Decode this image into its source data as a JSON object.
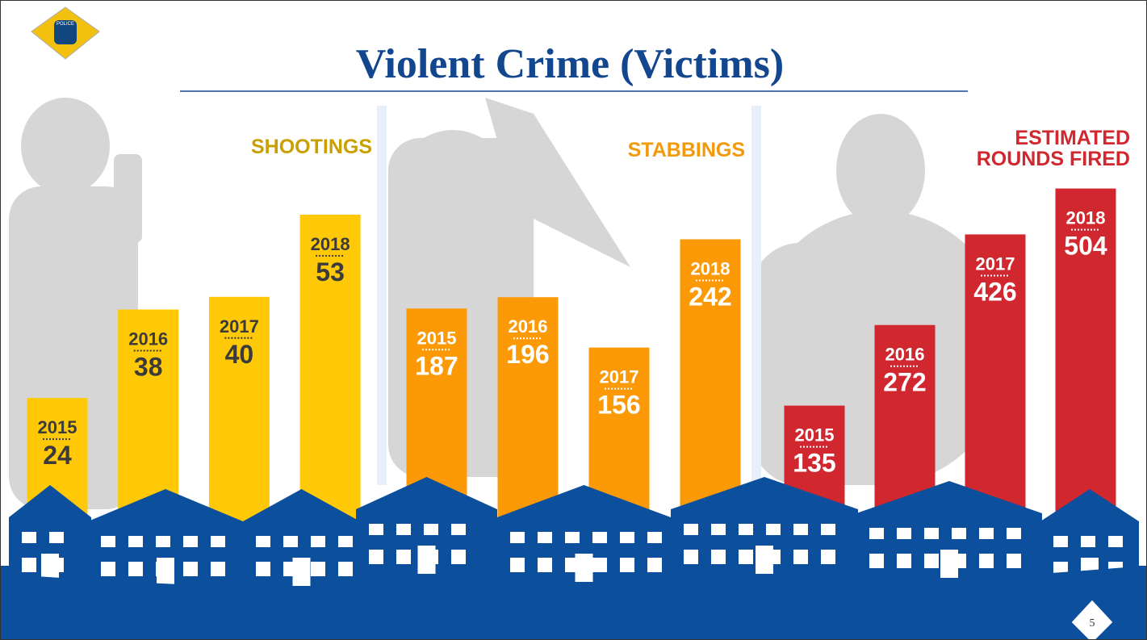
{
  "logo": "POLICE",
  "title": "Violent Crime (Victims)",
  "slide_number": "5",
  "chart_data": [
    {
      "type": "bar",
      "title": "SHOOTINGS",
      "categories": [
        "2015",
        "2016",
        "2017",
        "2018"
      ],
      "values": [
        24,
        38,
        40,
        53
      ],
      "color": "#ffc907",
      "title_color": "#c9a000",
      "label_color": "#3b3b3b"
    },
    {
      "type": "bar",
      "title": "STABBINGS",
      "categories": [
        "2015",
        "2016",
        "2017",
        "2018"
      ],
      "values": [
        187,
        196,
        156,
        242
      ],
      "color": "#fb9a06",
      "title_color": "#f39a0c",
      "label_color": "#ffffff"
    },
    {
      "type": "bar",
      "title": "ESTIMATED ROUNDS FIRED",
      "categories": [
        "2015",
        "2016",
        "2017",
        "2018"
      ],
      "values": [
        135,
        272,
        426,
        504
      ],
      "color": "#d1272f",
      "title_color": "#d1272f",
      "label_color": "#ffffff"
    }
  ]
}
